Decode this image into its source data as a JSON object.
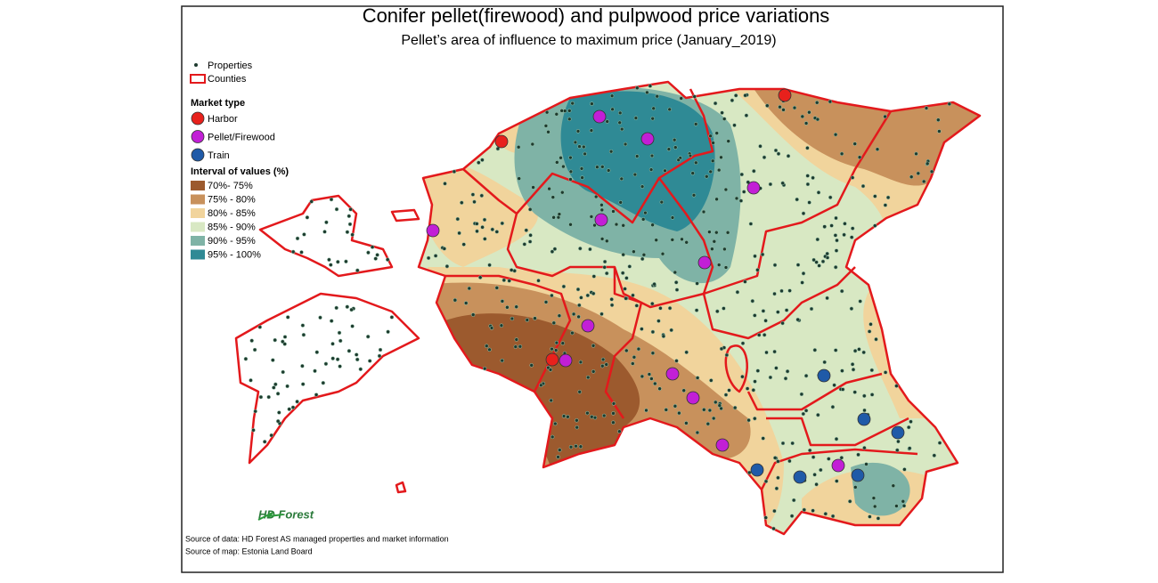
{
  "header": {
    "title": "Conifer pellet(firewood) and pulpwood price variations",
    "subtitle": "Pellet’s area of influence to maximum price (January_2019)"
  },
  "legend": {
    "layers": [
      "Properties",
      "Counties"
    ],
    "market_type": {
      "title": "Market type",
      "items": [
        {
          "label": "Harbor",
          "color": "#e8211c"
        },
        {
          "label": "Pellet/Firewood",
          "color": "#c21fd6"
        },
        {
          "label": "Train",
          "color": "#1f5aa8"
        }
      ]
    },
    "intervals": {
      "title": "Interval of values (%)",
      "items": [
        {
          "label": "70%- 75%",
          "color": "#9c5a2e"
        },
        {
          "label": "75% - 80%",
          "color": "#c8915c"
        },
        {
          "label": "80% - 85%",
          "color": "#f1d49c"
        },
        {
          "label": "85% - 90%",
          "color": "#d8e8c3"
        },
        {
          "label": "90% - 95%",
          "color": "#7fb3a6"
        },
        {
          "label": "95% - 100%",
          "color": "#2f8a95"
        }
      ]
    }
  },
  "logo": "HD Forest",
  "sources": [
    "Source of data: HD Forest AS managed properties and market information",
    "Source of map: Estonia Land Board"
  ]
}
